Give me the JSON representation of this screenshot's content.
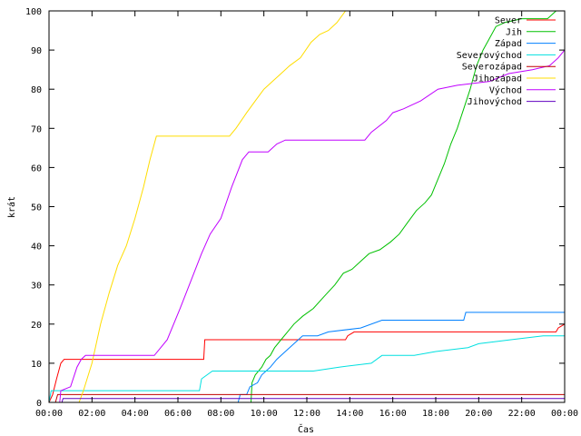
{
  "chart_data": {
    "type": "line",
    "xlabel": "Čas",
    "ylabel": "krát",
    "xlim": [
      0,
      24
    ],
    "ylim": [
      0,
      100
    ],
    "x_ticks": [
      0,
      2,
      4,
      6,
      8,
      10,
      12,
      14,
      16,
      18,
      20,
      22,
      24
    ],
    "x_tick_labels": [
      "00:00",
      "02:00",
      "04:00",
      "06:00",
      "08:00",
      "10:00",
      "12:00",
      "14:00",
      "16:00",
      "18:00",
      "20:00",
      "22:00",
      "00:00"
    ],
    "y_ticks": [
      0,
      10,
      20,
      30,
      40,
      50,
      60,
      70,
      80,
      90,
      100
    ],
    "y_tick_labels": [
      "0",
      "10",
      "20",
      "30",
      "40",
      "50",
      "60",
      "70",
      "80",
      "90",
      "100"
    ],
    "grid": false,
    "legend_position": "top-right",
    "series": [
      {
        "name": "Sever",
        "color": "#ff0000",
        "points": [
          [
            0,
            0
          ],
          [
            0.17,
            2
          ],
          [
            0.35,
            6
          ],
          [
            0.55,
            10
          ],
          [
            0.7,
            11
          ],
          [
            7.2,
            11
          ],
          [
            7.25,
            16
          ],
          [
            13.8,
            16
          ],
          [
            13.9,
            17
          ],
          [
            14.2,
            18
          ],
          [
            23.6,
            18
          ],
          [
            23.7,
            19
          ],
          [
            24,
            20
          ]
        ]
      },
      {
        "name": "Jih",
        "color": "#00c000",
        "points": [
          [
            0,
            0
          ],
          [
            9.4,
            0
          ],
          [
            9.45,
            5
          ],
          [
            9.6,
            7
          ],
          [
            9.9,
            9
          ],
          [
            10.1,
            11
          ],
          [
            10.3,
            12
          ],
          [
            10.5,
            14
          ],
          [
            10.8,
            16
          ],
          [
            11.1,
            18
          ],
          [
            11.4,
            20
          ],
          [
            11.8,
            22
          ],
          [
            12.3,
            24
          ],
          [
            12.8,
            27
          ],
          [
            13.3,
            30
          ],
          [
            13.7,
            33
          ],
          [
            14.1,
            34
          ],
          [
            14.5,
            36
          ],
          [
            14.9,
            38
          ],
          [
            15.4,
            39
          ],
          [
            15.9,
            41
          ],
          [
            16.3,
            43
          ],
          [
            16.7,
            46
          ],
          [
            17.1,
            49
          ],
          [
            17.5,
            51
          ],
          [
            17.8,
            53
          ],
          [
            18.1,
            57
          ],
          [
            18.4,
            61
          ],
          [
            18.7,
            66
          ],
          [
            19.0,
            70
          ],
          [
            19.3,
            75
          ],
          [
            19.6,
            80
          ],
          [
            19.9,
            86
          ],
          [
            20.2,
            90
          ],
          [
            20.5,
            93
          ],
          [
            20.8,
            96
          ],
          [
            21.2,
            97
          ],
          [
            22.0,
            98
          ],
          [
            23.2,
            98
          ],
          [
            23.6,
            100
          ]
        ]
      },
      {
        "name": "Západ",
        "color": "#0080ff",
        "points": [
          [
            0,
            0
          ],
          [
            8.8,
            0
          ],
          [
            8.9,
            2
          ],
          [
            9.2,
            2
          ],
          [
            9.35,
            4
          ],
          [
            9.7,
            5
          ],
          [
            9.9,
            7
          ],
          [
            10.3,
            9
          ],
          [
            10.6,
            11
          ],
          [
            11.0,
            13
          ],
          [
            11.4,
            15
          ],
          [
            11.8,
            17
          ],
          [
            12.5,
            17
          ],
          [
            13.0,
            18
          ],
          [
            14.5,
            19
          ],
          [
            15.5,
            21
          ],
          [
            19.3,
            21
          ],
          [
            19.4,
            23
          ],
          [
            24,
            23
          ]
        ]
      },
      {
        "name": "Severovýchod",
        "color": "#00e0e0",
        "points": [
          [
            0,
            0
          ],
          [
            0.1,
            3
          ],
          [
            7.0,
            3
          ],
          [
            7.1,
            6
          ],
          [
            7.6,
            8
          ],
          [
            9.3,
            8
          ],
          [
            12.3,
            8
          ],
          [
            13.5,
            9
          ],
          [
            15.0,
            10
          ],
          [
            15.5,
            12
          ],
          [
            17.0,
            12
          ],
          [
            18.0,
            13
          ],
          [
            19.5,
            14
          ],
          [
            20.0,
            15
          ],
          [
            21.5,
            16
          ],
          [
            23.0,
            17
          ],
          [
            24,
            17
          ]
        ]
      },
      {
        "name": "Severozápad",
        "color": "#c00000",
        "points": [
          [
            0,
            0
          ],
          [
            0.3,
            0
          ],
          [
            0.4,
            2
          ],
          [
            24,
            2
          ]
        ]
      },
      {
        "name": "Jihozápad",
        "color": "#ffdd00",
        "points": [
          [
            0,
            0
          ],
          [
            1.4,
            0
          ],
          [
            1.6,
            3
          ],
          [
            2.0,
            10
          ],
          [
            2.4,
            20
          ],
          [
            2.8,
            28
          ],
          [
            3.2,
            35
          ],
          [
            3.6,
            40
          ],
          [
            4.0,
            47
          ],
          [
            4.4,
            55
          ],
          [
            4.7,
            62
          ],
          [
            5.0,
            68
          ],
          [
            6.5,
            68
          ],
          [
            8.4,
            68
          ],
          [
            8.7,
            70
          ],
          [
            9.2,
            74
          ],
          [
            9.6,
            77
          ],
          [
            10.0,
            80
          ],
          [
            10.4,
            82
          ],
          [
            10.8,
            84
          ],
          [
            11.2,
            86
          ],
          [
            11.7,
            88
          ],
          [
            12.2,
            92
          ],
          [
            12.6,
            94
          ],
          [
            13.0,
            95
          ],
          [
            13.4,
            97
          ],
          [
            13.8,
            100
          ],
          [
            24,
            100
          ]
        ]
      },
      {
        "name": "Východ",
        "color": "#c000ff",
        "points": [
          [
            0,
            0
          ],
          [
            0.5,
            0
          ],
          [
            0.55,
            3
          ],
          [
            1.0,
            4
          ],
          [
            1.3,
            9
          ],
          [
            1.5,
            11
          ],
          [
            1.7,
            12
          ],
          [
            4.9,
            12
          ],
          [
            5.5,
            16
          ],
          [
            6.1,
            24
          ],
          [
            6.6,
            31
          ],
          [
            7.1,
            38
          ],
          [
            7.5,
            43
          ],
          [
            8.0,
            47
          ],
          [
            8.5,
            55
          ],
          [
            9.0,
            62
          ],
          [
            9.3,
            64
          ],
          [
            10.2,
            64
          ],
          [
            10.6,
            66
          ],
          [
            11.0,
            67
          ],
          [
            14.7,
            67
          ],
          [
            15.0,
            69
          ],
          [
            15.7,
            72
          ],
          [
            16.0,
            74
          ],
          [
            16.5,
            75
          ],
          [
            17.3,
            77
          ],
          [
            18.1,
            80
          ],
          [
            19.0,
            81
          ],
          [
            20.5,
            82
          ],
          [
            21.4,
            84
          ],
          [
            22.5,
            85
          ],
          [
            23.3,
            86
          ],
          [
            23.7,
            88
          ],
          [
            24,
            90
          ]
        ]
      },
      {
        "name": "Jihovýchod",
        "color": "#6000c0",
        "points": [
          [
            0,
            0
          ],
          [
            0.6,
            0
          ],
          [
            0.65,
            1
          ],
          [
            1.2,
            1
          ],
          [
            1.3,
            1
          ],
          [
            24,
            1
          ]
        ]
      }
    ]
  }
}
